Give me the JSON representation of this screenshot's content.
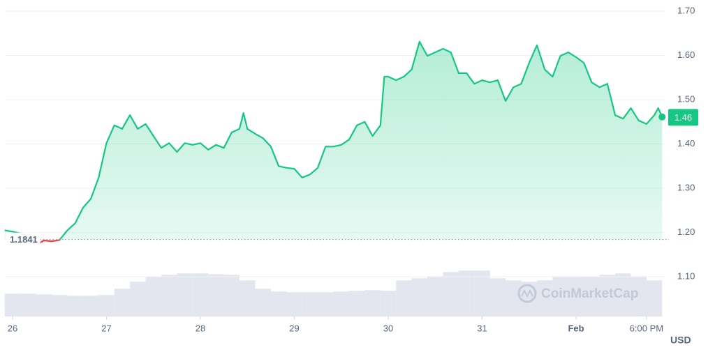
{
  "chart_data": {
    "type": "line",
    "x": [
      -2,
      0,
      2,
      4,
      6.5,
      8,
      10,
      12,
      14,
      16,
      18,
      20,
      22,
      24,
      26,
      28,
      30,
      32,
      34,
      36,
      38,
      40,
      42,
      44,
      46,
      48,
      50,
      52,
      54,
      56,
      58,
      59,
      60,
      62,
      64,
      66,
      68,
      70,
      72,
      74,
      76,
      78,
      80,
      82,
      84,
      86,
      88,
      90,
      92,
      94,
      95,
      96,
      98,
      100,
      102,
      104,
      106,
      108,
      110,
      112,
      114,
      116,
      118,
      120,
      122,
      124,
      125,
      126,
      128,
      130,
      132,
      134,
      136,
      138,
      140,
      142,
      144,
      146,
      148,
      150,
      152,
      154,
      156,
      158,
      160,
      162,
      164,
      165,
      166
    ],
    "series": [
      {
        "color": "#16c784",
        "below_color": "#ea3943",
        "values": [
          1.205,
          1.202,
          1.198,
          1.19,
          1.174,
          1.182,
          1.18,
          1.183,
          1.205,
          1.221,
          1.256,
          1.276,
          1.324,
          1.402,
          1.442,
          1.434,
          1.465,
          1.434,
          1.445,
          1.418,
          1.391,
          1.402,
          1.382,
          1.402,
          1.398,
          1.402,
          1.387,
          1.398,
          1.391,
          1.426,
          1.434,
          1.47,
          1.434,
          1.423,
          1.413,
          1.394,
          1.35,
          1.346,
          1.344,
          1.324,
          1.331,
          1.346,
          1.394,
          1.394,
          1.398,
          1.41,
          1.442,
          1.45,
          1.418,
          1.442,
          1.552,
          1.552,
          1.544,
          1.552,
          1.568,
          1.631,
          1.599,
          1.607,
          1.615,
          1.607,
          1.56,
          1.56,
          1.536,
          1.544,
          1.539,
          1.544,
          1.52,
          1.497,
          1.528,
          1.536,
          1.583,
          1.623,
          1.568,
          1.552,
          1.599,
          1.607,
          1.596,
          1.583,
          1.539,
          1.528,
          1.536,
          1.465,
          1.457,
          1.481,
          1.453,
          1.445,
          1.465,
          1.481,
          1.461
        ]
      }
    ],
    "baseline": 1.1841,
    "current_price": 1.46,
    "volume": {
      "color": "#e3e6ee",
      "bin_start": -2,
      "bin_width": 4,
      "ylim": [
        0,
        100
      ],
      "values": [
        33,
        33,
        32,
        31,
        30,
        30,
        31,
        40,
        50,
        57,
        60,
        62,
        62,
        61,
        60,
        52,
        40,
        36,
        35,
        35,
        35,
        36,
        37,
        38,
        37,
        52,
        55,
        58,
        64,
        66,
        66,
        55,
        52,
        50,
        52,
        58,
        58,
        57,
        60,
        62,
        58,
        52
      ]
    },
    "xlim": [
      -2,
      167
    ],
    "xticks": [
      {
        "value": 0,
        "label": "26"
      },
      {
        "value": 24,
        "label": "27"
      },
      {
        "value": 48,
        "label": "28"
      },
      {
        "value": 72,
        "label": "29"
      },
      {
        "value": 96,
        "label": "30"
      },
      {
        "value": 120,
        "label": "31"
      },
      {
        "value": 144,
        "label": "Feb"
      },
      {
        "value": 162,
        "label": "6:00 PM"
      }
    ],
    "ylim": [
      1.01,
      1.72
    ],
    "yticks": [
      {
        "value": 1.7,
        "label": "1.70"
      },
      {
        "value": 1.6,
        "label": "1.60"
      },
      {
        "value": 1.5,
        "label": "1.50"
      },
      {
        "value": 1.4,
        "label": "1.40"
      },
      {
        "value": 1.3,
        "label": "1.30"
      },
      {
        "value": 1.2,
        "label": "1.20"
      },
      {
        "value": 1.1,
        "label": "1.10"
      }
    ],
    "grid": true,
    "currency": "USD",
    "watermark": "CoinMarketCap"
  }
}
